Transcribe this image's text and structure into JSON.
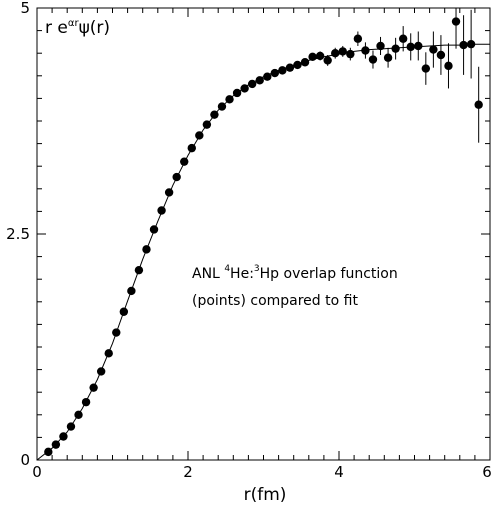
{
  "chart_data": {
    "type": "scatter",
    "title": "",
    "ylabel": "r e^{αr}ψ(r)",
    "ylabel_parts": {
      "prefix": "r e",
      "exp": "αr",
      "suffix": "ψ(r)"
    },
    "xlabel": "r(fm)",
    "xlim": [
      0,
      6
    ],
    "ylim": [
      0,
      5
    ],
    "x_ticks": [
      "0",
      "2",
      "4",
      "6"
    ],
    "y_ticks": [
      "0",
      "2.5",
      "5"
    ],
    "grid": false,
    "annotation": {
      "line1_prefix": "ANL ",
      "line1_sup1": "4",
      "line1_mid": "He:",
      "line1_sup2": "3",
      "line1_suffix": "Hp overlap function",
      "line2": "(points) compared to fit"
    },
    "series": [
      {
        "kind": "points",
        "x": [
          0.15,
          0.25,
          0.35,
          0.45,
          0.55,
          0.65,
          0.75,
          0.85,
          0.95,
          1.05,
          1.15,
          1.25,
          1.35,
          1.45,
          1.55,
          1.65,
          1.75,
          1.85,
          1.95,
          2.05,
          2.15,
          2.25,
          2.35,
          2.45,
          2.55,
          2.65,
          2.75,
          2.85,
          2.95,
          3.05,
          3.15,
          3.25,
          3.35,
          3.45,
          3.55,
          3.65,
          3.75,
          3.85,
          3.95,
          4.05,
          4.15,
          4.25,
          4.35,
          4.45,
          4.55,
          4.65,
          4.75,
          4.85,
          4.95,
          5.05,
          5.15,
          5.25,
          5.35,
          5.45,
          5.55,
          5.65,
          5.75,
          5.85
        ],
        "y": [
          0.09,
          0.17,
          0.26,
          0.37,
          0.5,
          0.64,
          0.8,
          0.98,
          1.18,
          1.41,
          1.64,
          1.87,
          2.1,
          2.33,
          2.55,
          2.76,
          2.96,
          3.13,
          3.3,
          3.45,
          3.59,
          3.71,
          3.82,
          3.91,
          3.99,
          4.06,
          4.11,
          4.16,
          4.2,
          4.24,
          4.28,
          4.31,
          4.34,
          4.37,
          4.4,
          4.46,
          4.47,
          4.42,
          4.5,
          4.52,
          4.49,
          4.66,
          4.53,
          4.43,
          4.58,
          4.45,
          4.55,
          4.66,
          4.57,
          4.58,
          4.33,
          4.54,
          4.48,
          4.36,
          4.85,
          4.59,
          4.6,
          3.93
        ],
        "yerr": [
          0,
          0,
          0,
          0,
          0,
          0,
          0,
          0,
          0,
          0,
          0,
          0,
          0,
          0,
          0,
          0,
          0,
          0,
          0,
          0,
          0,
          0,
          0,
          0,
          0,
          0,
          0,
          0,
          0,
          0,
          0,
          0,
          0,
          0,
          0,
          0.04,
          0.05,
          0.06,
          0.06,
          0.06,
          0.07,
          0.08,
          0.09,
          0.1,
          0.1,
          0.11,
          0.12,
          0.14,
          0.15,
          0.16,
          0.18,
          0.2,
          0.22,
          0.25,
          0.3,
          0.33,
          0.38,
          0.42
        ]
      },
      {
        "kind": "fit-line",
        "x": [
          0.0,
          0.2,
          0.4,
          0.6,
          0.8,
          1.0,
          1.2,
          1.4,
          1.6,
          1.8,
          2.0,
          2.2,
          2.4,
          2.6,
          2.8,
          3.0,
          3.2,
          3.4,
          3.6,
          3.8,
          4.0,
          4.2,
          4.4,
          4.6,
          4.8,
          5.0,
          5.2,
          5.4,
          5.6,
          5.8,
          6.0
        ],
        "y": [
          0.0,
          0.13,
          0.31,
          0.57,
          0.89,
          1.29,
          1.76,
          2.22,
          2.64,
          3.04,
          3.37,
          3.65,
          3.87,
          4.03,
          4.15,
          4.24,
          4.31,
          4.37,
          4.42,
          4.46,
          4.49,
          4.52,
          4.54,
          4.55,
          4.56,
          4.57,
          4.58,
          4.59,
          4.59,
          4.6,
          4.6
        ]
      }
    ]
  }
}
